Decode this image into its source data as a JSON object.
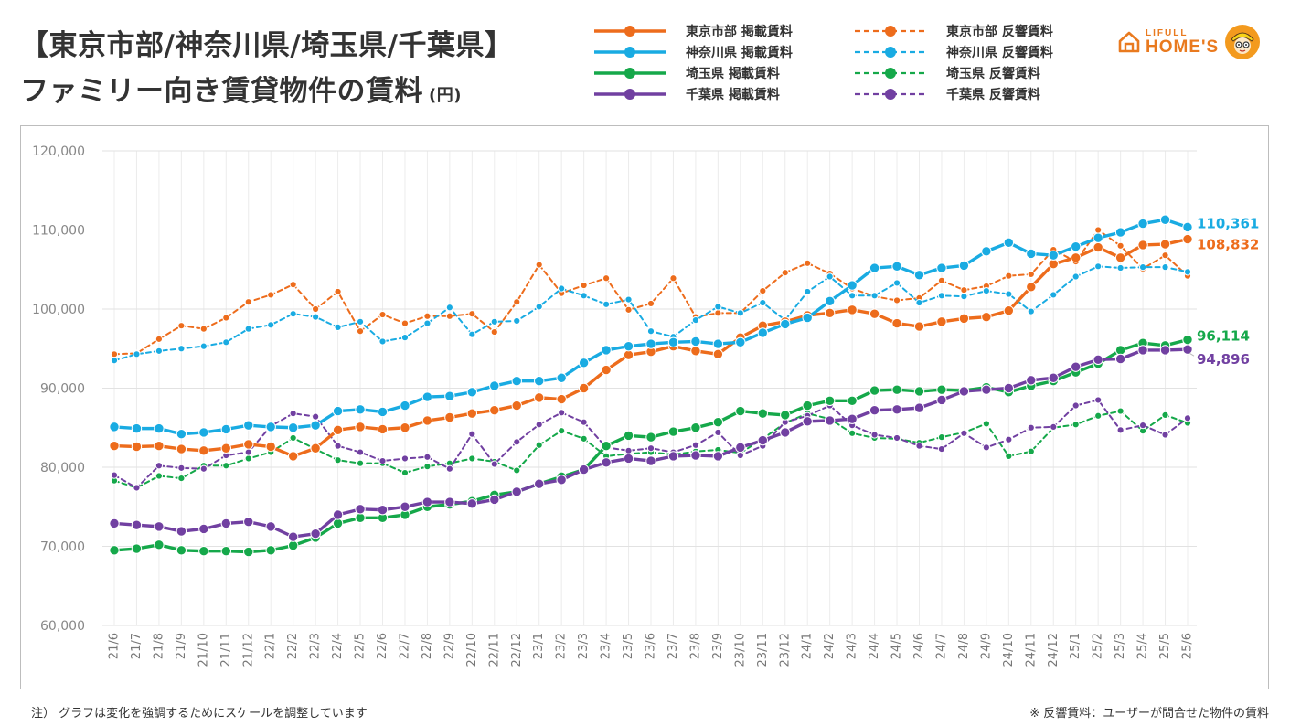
{
  "title": {
    "line1": "【東京市部/神奈川県/埼玉県/千葉県】",
    "line2": "ファミリー向き賃貸物件の賃料",
    "unit": "(円)"
  },
  "logo": {
    "line1": "LIFULL",
    "line2": "HOME'S",
    "icon": "house-icon",
    "mascot": "mascot-icon"
  },
  "notes": {
    "left": "注） グラフは変化を強調するためにスケールを調整しています",
    "right": "※ 反響賃料：ユーザーが問合せた物件の賃料"
  },
  "colors": {
    "tokyo": "#ed6c1c",
    "kanagawa": "#19abe2",
    "saitama": "#15a84a",
    "chiba": "#7140a1"
  },
  "chart_data": {
    "type": "line",
    "title": "ファミリー向き賃貸物件の賃料",
    "ylabel": "",
    "xlabel": "",
    "ylim": [
      60000,
      120000
    ],
    "yticks": [
      60000,
      70000,
      80000,
      90000,
      100000,
      110000,
      120000
    ],
    "ytick_labels": [
      "60,000",
      "70,000",
      "80,000",
      "90,000",
      "100,000",
      "110,000",
      "120,000"
    ],
    "grid": true,
    "legend_position": "top",
    "categories": [
      "21/6",
      "21/7",
      "21/8",
      "21/9",
      "21/10",
      "21/11",
      "21/12",
      "22/1",
      "22/2",
      "22/3",
      "22/4",
      "22/5",
      "22/6",
      "22/7",
      "22/8",
      "22/9",
      "22/10",
      "22/11",
      "22/12",
      "23/1",
      "23/2",
      "23/3",
      "23/4",
      "23/5",
      "23/6",
      "23/7",
      "23/8",
      "23/9",
      "23/10",
      "23/11",
      "23/12",
      "24/1",
      "24/2",
      "24/3",
      "24/4",
      "24/5",
      "24/6",
      "24/7",
      "24/8",
      "24/9",
      "24/10",
      "24/11",
      "24/12",
      "25/1",
      "25/2",
      "25/3",
      "25/4",
      "25/5",
      "25/6"
    ],
    "series": [
      {
        "name": "東京市部 掲載賃料",
        "key": "tokyo",
        "style": "solid",
        "end_label": "108,832",
        "values": [
          82700,
          82600,
          82700,
          82300,
          82100,
          82400,
          82900,
          82600,
          81400,
          82400,
          84700,
          85100,
          84800,
          85000,
          85900,
          86300,
          86800,
          87200,
          87800,
          88800,
          88600,
          90000,
          92300,
          94200,
          94600,
          95300,
          94700,
          94300,
          96400,
          97900,
          98400,
          99200,
          99500,
          99900,
          99400,
          98200,
          97800,
          98400,
          98800,
          99000,
          99800,
          102800,
          105700,
          106500,
          107800,
          106500,
          108100,
          108200,
          108832
        ]
      },
      {
        "name": "神奈川県 掲載賃料",
        "key": "kanagawa",
        "style": "solid",
        "end_label": "110,361",
        "values": [
          85100,
          84900,
          84900,
          84200,
          84400,
          84800,
          85300,
          85100,
          85000,
          85300,
          87100,
          87300,
          87000,
          87800,
          88900,
          89000,
          89500,
          90300,
          90900,
          90900,
          91300,
          93200,
          94800,
          95300,
          95600,
          95800,
          95900,
          95600,
          95800,
          97000,
          98100,
          98900,
          101000,
          103000,
          105200,
          105400,
          104300,
          105200,
          105500,
          107300,
          108400,
          107000,
          106800,
          107900,
          109000,
          109700,
          110800,
          111300,
          110361
        ]
      },
      {
        "name": "埼玉県 掲載賃料",
        "key": "saitama",
        "style": "solid",
        "end_label": "96,114",
        "values": [
          69500,
          69700,
          70200,
          69500,
          69400,
          69400,
          69300,
          69500,
          70100,
          71100,
          72900,
          73600,
          73600,
          74000,
          75000,
          75300,
          75700,
          76500,
          76900,
          77900,
          78800,
          79700,
          82700,
          84000,
          83800,
          84500,
          85000,
          85700,
          87100,
          86800,
          86600,
          87800,
          88400,
          88400,
          89700,
          89800,
          89600,
          89800,
          89700,
          90100,
          89500,
          90300,
          90900,
          92000,
          93100,
          94800,
          95700,
          95400,
          96114
        ]
      },
      {
        "name": "千葉県 掲載賃料",
        "key": "chiba",
        "style": "solid",
        "end_label": "94,896",
        "values": [
          72900,
          72700,
          72500,
          71900,
          72200,
          72900,
          73100,
          72500,
          71200,
          71600,
          74000,
          74700,
          74600,
          75000,
          75600,
          75600,
          75400,
          75900,
          76900,
          77900,
          78400,
          79700,
          80600,
          81100,
          80800,
          81400,
          81500,
          81400,
          82500,
          83400,
          84400,
          85800,
          85900,
          86100,
          87200,
          87300,
          87500,
          88500,
          89600,
          89800,
          90000,
          91000,
          91300,
          92700,
          93600,
          93700,
          94800,
          94800,
          94896
        ]
      },
      {
        "name": "東京市部 反響賃料",
        "key": "tokyo",
        "style": "dashed",
        "values": [
          94300,
          94400,
          96200,
          97900,
          97500,
          98900,
          100900,
          101800,
          103100,
          100000,
          102200,
          97200,
          99300,
          98200,
          99100,
          99100,
          99400,
          97100,
          100900,
          105600,
          102000,
          103000,
          103900,
          99900,
          100700,
          103900,
          99000,
          99500,
          99500,
          102300,
          104600,
          105800,
          104500,
          102600,
          101600,
          101100,
          101400,
          103600,
          102400,
          102900,
          104200,
          104400,
          107500,
          106000,
          110000,
          108000,
          105100,
          106800,
          104200
        ]
      },
      {
        "name": "神奈川県 反響賃料",
        "key": "kanagawa",
        "style": "dashed",
        "values": [
          93500,
          94300,
          94700,
          95000,
          95300,
          95800,
          97500,
          98000,
          99400,
          99000,
          97700,
          98400,
          95900,
          96400,
          98200,
          100200,
          96800,
          98400,
          98500,
          100300,
          102600,
          101700,
          100600,
          101200,
          97200,
          96500,
          98600,
          100300,
          99500,
          100800,
          98600,
          102200,
          104100,
          101700,
          101700,
          103300,
          100800,
          101700,
          101600,
          102300,
          101900,
          99700,
          101800,
          104100,
          105400,
          105200,
          105300,
          105300,
          104700
        ]
      },
      {
        "name": "埼玉県 反響賃料",
        "key": "saitama",
        "style": "dashed",
        "values": [
          78300,
          77400,
          78900,
          78600,
          80200,
          80200,
          81100,
          81900,
          83700,
          82300,
          80900,
          80500,
          80500,
          79300,
          80100,
          80500,
          81100,
          80700,
          79600,
          82800,
          84600,
          83600,
          81400,
          81700,
          81900,
          81600,
          82000,
          82200,
          81800,
          83600,
          85600,
          86800,
          86100,
          84300,
          83700,
          83600,
          83100,
          83800,
          84400,
          85500,
          81400,
          82000,
          85000,
          85400,
          86500,
          87100,
          84600,
          86600,
          85600
        ]
      },
      {
        "name": "千葉県 反響賃料",
        "key": "chiba",
        "style": "dashed",
        "values": [
          79000,
          77400,
          80200,
          79900,
          79800,
          81500,
          81900,
          85200,
          86800,
          86400,
          82700,
          81900,
          80800,
          81100,
          81300,
          79800,
          84200,
          80400,
          83200,
          85400,
          86900,
          85700,
          82500,
          82100,
          82400,
          81900,
          82800,
          84400,
          81500,
          82700,
          85700,
          86500,
          87800,
          85300,
          84100,
          83700,
          82700,
          82300,
          84300,
          82500,
          83500,
          85000,
          85100,
          87800,
          88500,
          84700,
          85300,
          84100,
          86200
        ]
      }
    ]
  }
}
